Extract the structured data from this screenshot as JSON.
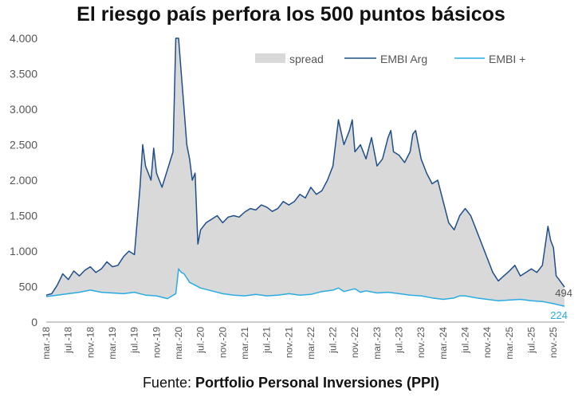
{
  "chart_data": {
    "type": "line",
    "title": "El riesgo país perfora los 500 puntos básicos",
    "ylim": [
      0,
      4000
    ],
    "y_ticks": [
      0,
      500,
      1000,
      1500,
      2000,
      2500,
      3000,
      3500,
      4000
    ],
    "y_tick_labels": [
      "0",
      "500",
      "1.000",
      "1.500",
      "2.000",
      "2.500",
      "3.000",
      "3.500",
      "4.000"
    ],
    "x_tick_labels": [
      "mar.-18",
      "jul.-18",
      "nov.-18",
      "mar.-19",
      "jul.-19",
      "nov.-19",
      "mar.-20",
      "jul.-20",
      "nov.-20",
      "mar.-21",
      "jul.-21",
      "nov.-21",
      "mar.-22",
      "jul.-22",
      "nov.-22",
      "mar.-23",
      "jul.-23",
      "nov.-23",
      "mar.-24",
      "jul.-24",
      "nov.-24",
      "mar.-25",
      "jul.-25",
      "nov.-25"
    ],
    "x_months": [
      0,
      4,
      8,
      12,
      16,
      20,
      24,
      28,
      32,
      36,
      40,
      44,
      48,
      52,
      56,
      60,
      64,
      68,
      72,
      76,
      80,
      84,
      88,
      92
    ],
    "x_range_months": [
      0,
      94
    ],
    "legend_position": "top-right",
    "series": [
      {
        "name": "spread",
        "kind": "area",
        "color": "#d9d9d9"
      },
      {
        "name": "EMBI Arg",
        "kind": "line",
        "color": "#1f4e8c",
        "points": [
          [
            0,
            380
          ],
          [
            1,
            400
          ],
          [
            2,
            520
          ],
          [
            3,
            680
          ],
          [
            4,
            600
          ],
          [
            5,
            720
          ],
          [
            6,
            650
          ],
          [
            7,
            730
          ],
          [
            8,
            780
          ],
          [
            9,
            700
          ],
          [
            10,
            750
          ],
          [
            11,
            850
          ],
          [
            12,
            780
          ],
          [
            13,
            800
          ],
          [
            14,
            920
          ],
          [
            15,
            1000
          ],
          [
            16,
            950
          ],
          [
            17,
            1900
          ],
          [
            17.5,
            2500
          ],
          [
            18,
            2200
          ],
          [
            19,
            2000
          ],
          [
            19.5,
            2450
          ],
          [
            20,
            2100
          ],
          [
            21,
            1900
          ],
          [
            22,
            2150
          ],
          [
            23,
            2400
          ],
          [
            23.5,
            4000
          ],
          [
            24,
            4000
          ],
          [
            24.5,
            3500
          ],
          [
            25,
            3000
          ],
          [
            25.5,
            2500
          ],
          [
            26,
            2300
          ],
          [
            26.5,
            2000
          ],
          [
            27,
            2100
          ],
          [
            27.5,
            1100
          ],
          [
            28,
            1300
          ],
          [
            29,
            1400
          ],
          [
            30,
            1450
          ],
          [
            31,
            1500
          ],
          [
            32,
            1400
          ],
          [
            33,
            1480
          ],
          [
            34,
            1500
          ],
          [
            35,
            1480
          ],
          [
            36,
            1550
          ],
          [
            37,
            1600
          ],
          [
            38,
            1580
          ],
          [
            39,
            1650
          ],
          [
            40,
            1620
          ],
          [
            41,
            1560
          ],
          [
            42,
            1600
          ],
          [
            43,
            1700
          ],
          [
            44,
            1650
          ],
          [
            45,
            1700
          ],
          [
            46,
            1800
          ],
          [
            47,
            1750
          ],
          [
            48,
            1900
          ],
          [
            49,
            1800
          ],
          [
            50,
            1850
          ],
          [
            51,
            2000
          ],
          [
            52,
            2200
          ],
          [
            53,
            2850
          ],
          [
            54,
            2500
          ],
          [
            55,
            2700
          ],
          [
            55.5,
            2850
          ],
          [
            56,
            2400
          ],
          [
            57,
            2500
          ],
          [
            58,
            2300
          ],
          [
            59,
            2600
          ],
          [
            60,
            2200
          ],
          [
            61,
            2300
          ],
          [
            62,
            2600
          ],
          [
            62.5,
            2700
          ],
          [
            63,
            2400
          ],
          [
            64,
            2350
          ],
          [
            65,
            2250
          ],
          [
            66,
            2400
          ],
          [
            66.5,
            2650
          ],
          [
            67,
            2700
          ],
          [
            68,
            2300
          ],
          [
            69,
            2100
          ],
          [
            70,
            1950
          ],
          [
            71,
            2000
          ],
          [
            72,
            1700
          ],
          [
            73,
            1400
          ],
          [
            74,
            1300
          ],
          [
            75,
            1500
          ],
          [
            76,
            1600
          ],
          [
            77,
            1500
          ],
          [
            78,
            1300
          ],
          [
            79,
            1100
          ],
          [
            80,
            900
          ],
          [
            81,
            700
          ],
          [
            82,
            580
          ],
          [
            83,
            650
          ],
          [
            84,
            720
          ],
          [
            85,
            800
          ],
          [
            86,
            650
          ],
          [
            87,
            700
          ],
          [
            88,
            750
          ],
          [
            89,
            700
          ],
          [
            90,
            800
          ],
          [
            91,
            1350
          ],
          [
            91.5,
            1150
          ],
          [
            92,
            1050
          ],
          [
            92.5,
            650
          ],
          [
            93,
            600
          ],
          [
            94,
            494
          ]
        ]
      },
      {
        "name": "EMBI +",
        "kind": "line",
        "color": "#29abe2",
        "points": [
          [
            0,
            360
          ],
          [
            2,
            380
          ],
          [
            4,
            400
          ],
          [
            6,
            420
          ],
          [
            8,
            450
          ],
          [
            10,
            420
          ],
          [
            12,
            410
          ],
          [
            14,
            400
          ],
          [
            16,
            420
          ],
          [
            18,
            380
          ],
          [
            20,
            370
          ],
          [
            22,
            330
          ],
          [
            23.5,
            400
          ],
          [
            24,
            750
          ],
          [
            24.5,
            700
          ],
          [
            25,
            680
          ],
          [
            26,
            560
          ],
          [
            27,
            520
          ],
          [
            28,
            480
          ],
          [
            30,
            440
          ],
          [
            32,
            400
          ],
          [
            34,
            380
          ],
          [
            36,
            370
          ],
          [
            38,
            390
          ],
          [
            40,
            370
          ],
          [
            42,
            380
          ],
          [
            44,
            400
          ],
          [
            46,
            380
          ],
          [
            48,
            390
          ],
          [
            50,
            430
          ],
          [
            52,
            450
          ],
          [
            53,
            480
          ],
          [
            54,
            430
          ],
          [
            56,
            470
          ],
          [
            57,
            420
          ],
          [
            58,
            440
          ],
          [
            60,
            410
          ],
          [
            62,
            420
          ],
          [
            64,
            400
          ],
          [
            66,
            380
          ],
          [
            68,
            370
          ],
          [
            70,
            340
          ],
          [
            72,
            320
          ],
          [
            74,
            340
          ],
          [
            75,
            370
          ],
          [
            76,
            370
          ],
          [
            78,
            340
          ],
          [
            80,
            320
          ],
          [
            82,
            300
          ],
          [
            84,
            310
          ],
          [
            86,
            320
          ],
          [
            88,
            300
          ],
          [
            90,
            290
          ],
          [
            92,
            260
          ],
          [
            94,
            224
          ]
        ]
      }
    ],
    "end_labels": {
      "embi_arg": "494",
      "embi_plus": "224"
    }
  },
  "source": {
    "prefix": "Fuente: ",
    "name": "Portfolio Personal Inversiones (PPI)"
  }
}
